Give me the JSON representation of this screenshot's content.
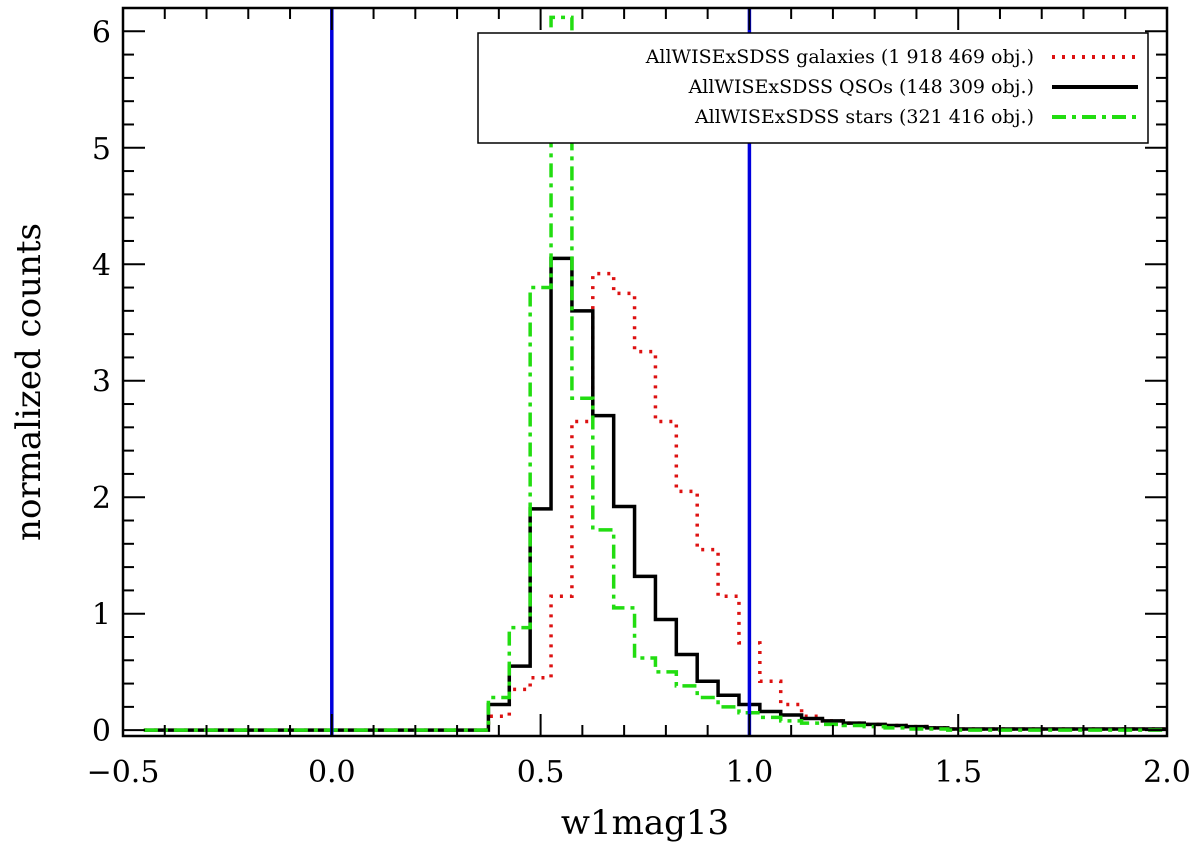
{
  "chart_data": {
    "type": "line",
    "title": "",
    "xlabel": "w1mag13",
    "ylabel": "normalized counts",
    "xlim": [
      -0.5,
      2.0
    ],
    "ylim": [
      -0.05,
      6.2
    ],
    "xticks": [
      -0.5,
      0.0,
      0.5,
      1.0,
      1.5,
      2.0
    ],
    "xtick_labels": [
      "−0.5",
      "0.0",
      "0.5",
      "1.0",
      "1.5",
      "2.0"
    ],
    "yticks": [
      0,
      1,
      2,
      3,
      4,
      5,
      6
    ],
    "ytick_labels": [
      "0",
      "1",
      "2",
      "3",
      "4",
      "5",
      "6"
    ],
    "grid": false,
    "legend_position": "top-right",
    "bin_edges": [
      -0.45,
      0.375,
      0.425,
      0.475,
      0.525,
      0.575,
      0.625,
      0.675,
      0.725,
      0.775,
      0.825,
      0.875,
      0.925,
      0.975,
      1.025,
      1.075,
      1.125,
      1.175,
      1.225,
      1.275,
      1.325,
      1.375,
      1.425,
      1.475,
      2.0
    ],
    "vertical_lines": [
      {
        "x": 0.0,
        "color": "#0000dd"
      },
      {
        "x": 1.0,
        "color": "#0000dd"
      }
    ],
    "series": [
      {
        "name": "AllWISExSDSS galaxies (1 918 469 obj.)",
        "color": "#dd1111",
        "style": "dotted",
        "values": [
          0.0,
          0.12,
          0.35,
          0.45,
          1.15,
          2.65,
          3.92,
          3.75,
          3.25,
          2.65,
          2.05,
          1.55,
          1.15,
          0.75,
          0.42,
          0.22,
          0.12,
          0.08,
          0.06,
          0.05,
          0.04,
          0.03,
          0.02,
          0.01
        ]
      },
      {
        "name": "AllWISExSDSS QSOs (148 309 obj.)",
        "color": "#000000",
        "style": "solid",
        "values": [
          0.0,
          0.22,
          0.55,
          1.9,
          4.05,
          3.6,
          2.7,
          1.92,
          1.32,
          0.95,
          0.65,
          0.42,
          0.3,
          0.22,
          0.16,
          0.13,
          0.1,
          0.08,
          0.06,
          0.05,
          0.04,
          0.03,
          0.02,
          0.01
        ]
      },
      {
        "name": "AllWISExSDSS stars (321 416 obj.)",
        "color": "#22dd11",
        "style": "dashdot",
        "values": [
          0.0,
          0.28,
          0.88,
          3.8,
          6.12,
          2.85,
          1.72,
          1.05,
          0.62,
          0.5,
          0.38,
          0.28,
          0.2,
          0.15,
          0.11,
          0.08,
          0.06,
          0.05,
          0.04,
          0.03,
          0.02,
          0.01,
          0.01,
          0.0
        ]
      }
    ]
  }
}
